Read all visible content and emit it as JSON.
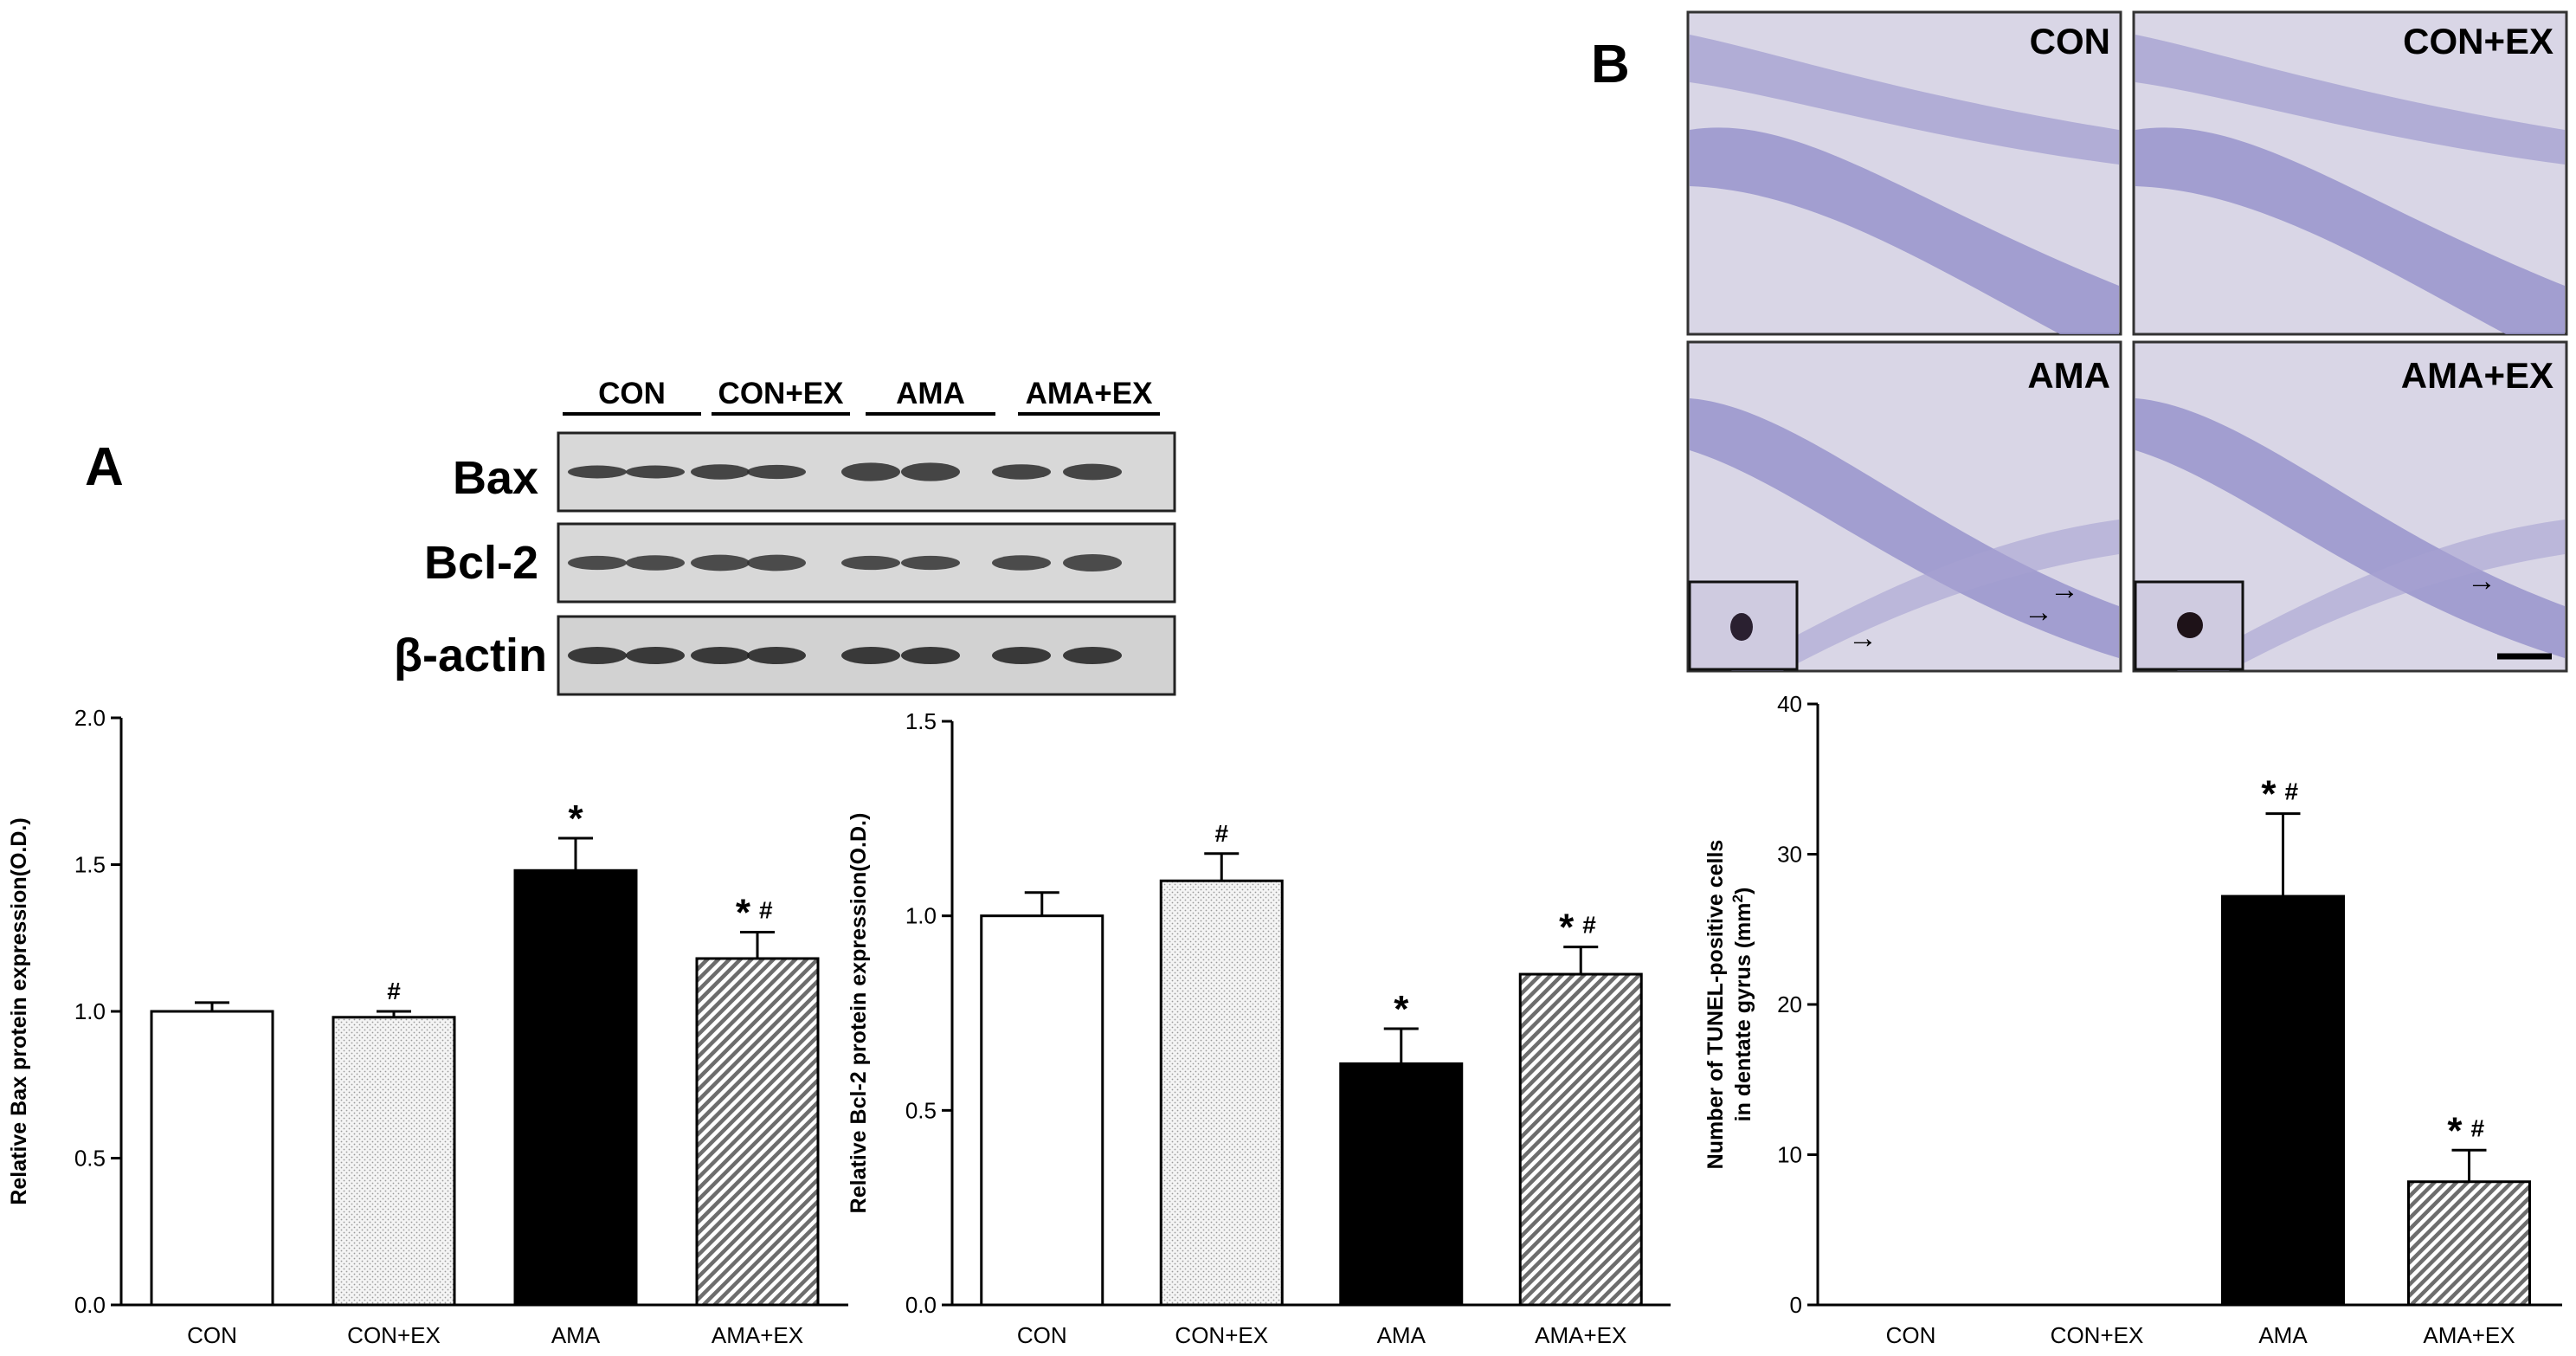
{
  "panel_labels": {
    "a": "A",
    "b": "B"
  },
  "western_blot": {
    "groups": [
      "CON",
      "CON+EX",
      "AMA",
      "AMA+EX"
    ],
    "rows": [
      "Bax",
      "Bcl-2",
      "β-actin"
    ]
  },
  "micrographs": {
    "panels": [
      "CON",
      "CON+EX",
      "AMA",
      "AMA+EX"
    ]
  },
  "colors": {
    "con": "#ffffff",
    "con_ex": "#e6e6e6",
    "ama": "#000000",
    "ama_ex": "#bdbdbd",
    "stain_bg": "#d9d6e6",
    "stain_band": "#8a86c4"
  },
  "chart_data": [
    {
      "type": "bar",
      "categories": [
        "CON",
        "CON+EX",
        "AMA",
        "AMA+EX"
      ],
      "values": [
        1.0,
        0.98,
        1.48,
        1.18
      ],
      "errors": [
        0.03,
        0.02,
        0.11,
        0.09
      ],
      "annotations": [
        "",
        "#",
        "*",
        "*#"
      ],
      "ylabel": "Relative Bax protein expression(O.D.)",
      "ylim": [
        0,
        2.0
      ],
      "yticks": [
        "0.0",
        "0.5",
        "1.0",
        "1.5",
        "2.0"
      ],
      "ytick_values": [
        0,
        0.5,
        1.0,
        1.5,
        2.0
      ],
      "fills": [
        "white",
        "dotted",
        "black",
        "hatched"
      ]
    },
    {
      "type": "bar",
      "categories": [
        "CON",
        "CON+EX",
        "AMA",
        "AMA+EX"
      ],
      "values": [
        1.0,
        1.09,
        0.62,
        0.85
      ],
      "errors": [
        0.06,
        0.07,
        0.09,
        0.07
      ],
      "annotations": [
        "",
        "#",
        "*",
        "*#"
      ],
      "ylabel": "Relative Bcl-2 protein expression(O.D.)",
      "ylim": [
        0,
        1.5
      ],
      "yticks": [
        "0.0",
        "0.5",
        "1.0",
        "1.5"
      ],
      "ytick_values": [
        0,
        0.5,
        1.0,
        1.5
      ],
      "fills": [
        "white",
        "dotted",
        "black",
        "hatched"
      ]
    },
    {
      "type": "bar",
      "categories": [
        "CON",
        "CON+EX",
        "AMA",
        "AMA+EX"
      ],
      "values": [
        0,
        0,
        27.2,
        8.2
      ],
      "errors": [
        0,
        0,
        5.5,
        2.1
      ],
      "annotations": [
        "",
        "",
        "*#",
        "*#"
      ],
      "ylabel": "Number of TUNEL-positive cells",
      "ylabel2": "in dentate gyrus (mm",
      "ylabel2_sup": "2",
      "ylabel2_end": ")",
      "ylim": [
        0,
        40
      ],
      "yticks": [
        "0",
        "10",
        "20",
        "30",
        "40"
      ],
      "ytick_values": [
        0,
        10,
        20,
        30,
        40
      ],
      "fills": [
        "white",
        "dotted",
        "black",
        "hatched"
      ]
    }
  ]
}
